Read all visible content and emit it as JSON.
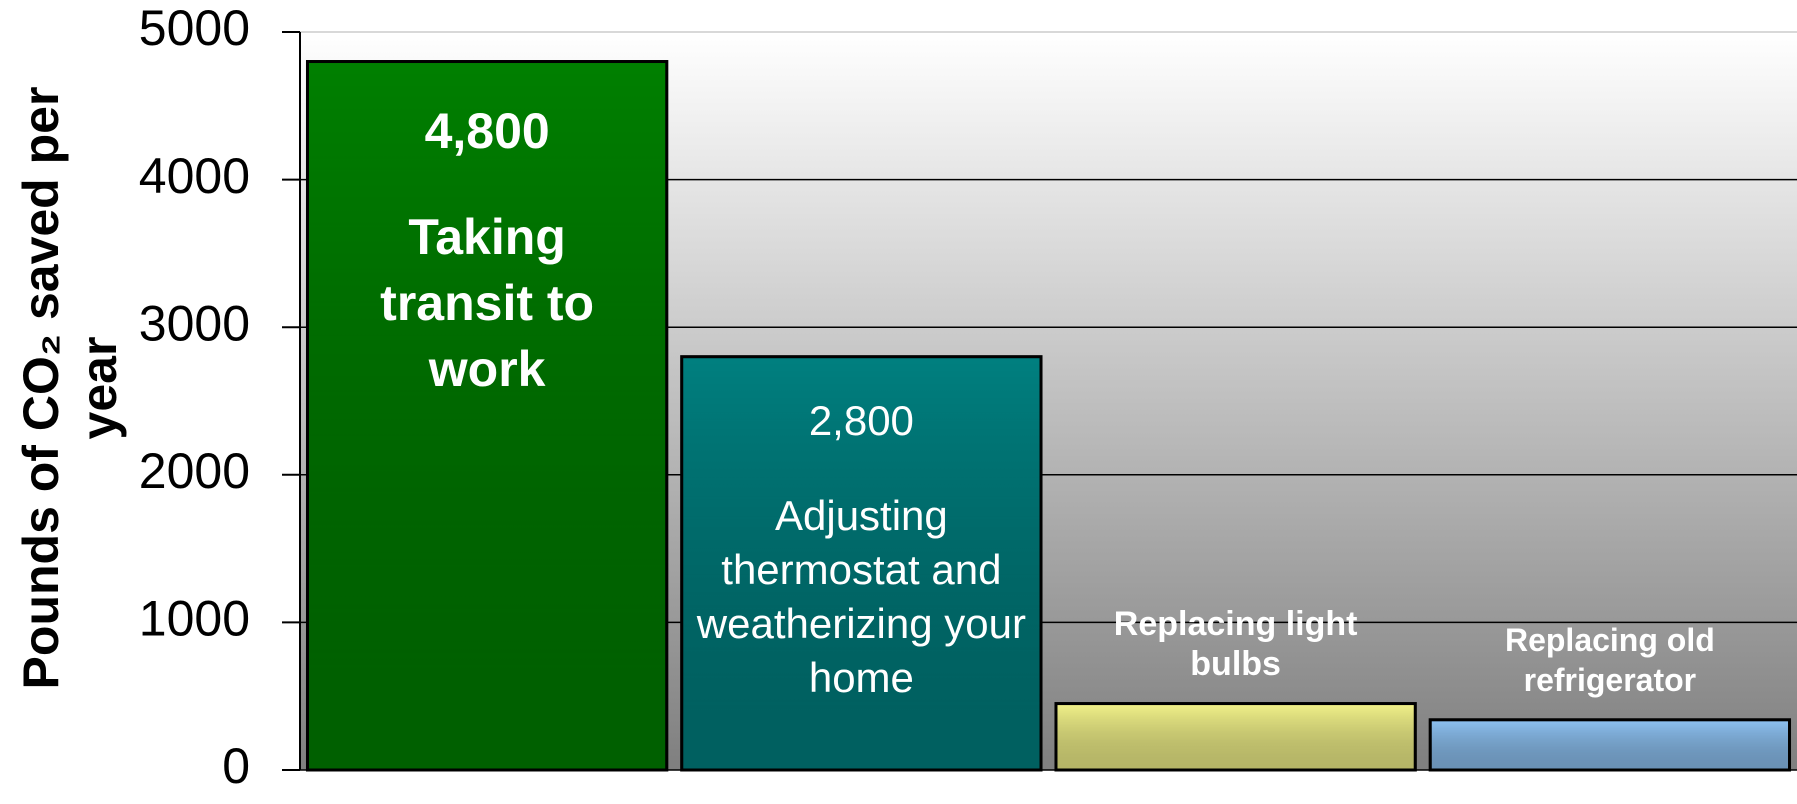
{
  "chart_data": {
    "type": "bar",
    "y_label": "Pounds of CO₂ saved per year",
    "categories": [
      "Taking transit to work",
      "Adjusting thermostat and weatherizing your home",
      "Replacing light bulbs",
      "Replacing old refrigerator"
    ],
    "values": [
      4800,
      2800,
      450,
      340
    ],
    "value_labels": [
      "4,800",
      "2,800",
      null,
      null
    ],
    "colors": [
      "#008000",
      "#008080",
      "#f2f28a",
      "#8ec2f2"
    ],
    "ylim": [
      0,
      5000
    ],
    "yticks": [
      0,
      1000,
      2000,
      3000,
      4000,
      5000
    ],
    "grid": true
  }
}
